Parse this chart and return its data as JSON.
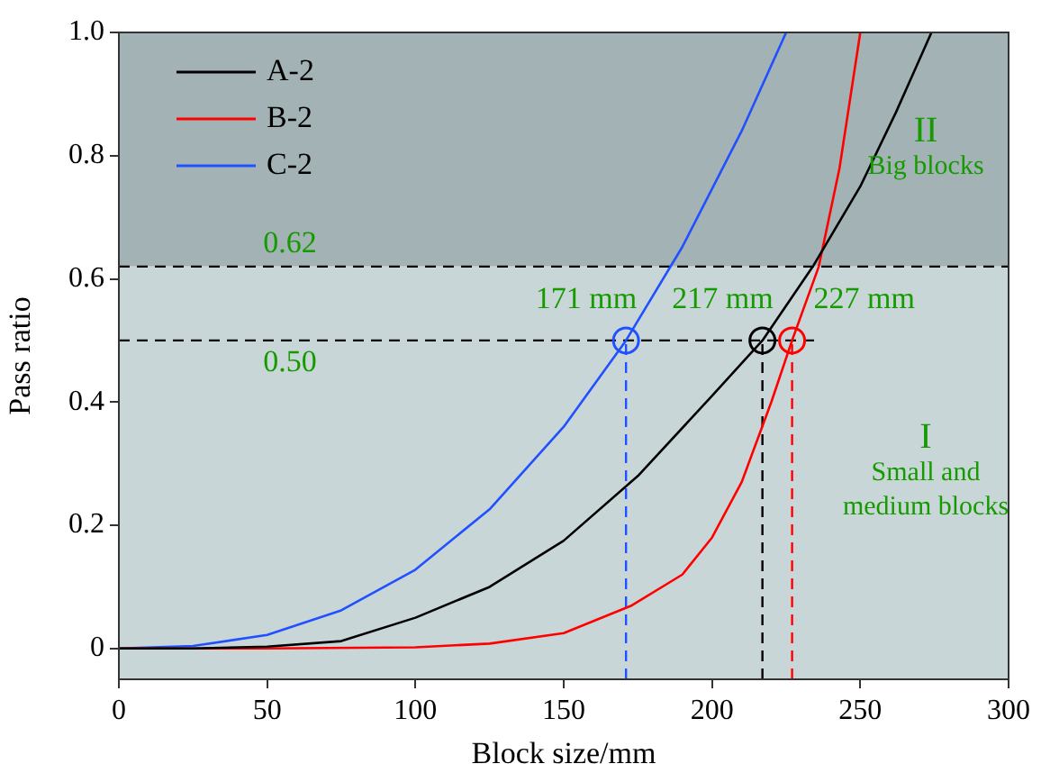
{
  "chart_data": {
    "type": "line",
    "xlabel": "Block size/mm",
    "ylabel": "Pass ratio",
    "xlim": [
      0,
      300
    ],
    "xticks": [
      0,
      50,
      100,
      150,
      200,
      250,
      300
    ],
    "ylim": [
      -0.05,
      1.0
    ],
    "yticks": [
      0,
      0.2,
      0.4,
      0.6,
      0.8,
      {
        "value": 1,
        "label": "1.0"
      }
    ],
    "grid": false,
    "legend": "top left",
    "marker": "none",
    "line_style": "solid",
    "series": [
      {
        "name": "A-2",
        "color": "#000000",
        "x": [
          0,
          25,
          50,
          75,
          100,
          125,
          150,
          175,
          200,
          217,
          234,
          250,
          262,
          274
        ],
        "values": [
          0,
          0,
          0.003,
          0.012,
          0.05,
          0.1,
          0.175,
          0.28,
          0.41,
          0.5,
          0.62,
          0.75,
          0.87,
          1.0
        ]
      },
      {
        "name": "B-2",
        "color": "#ff0000",
        "x": [
          0,
          50,
          100,
          125,
          150,
          173,
          190,
          200,
          210,
          220,
          227,
          236,
          243,
          250
        ],
        "values": [
          0,
          0,
          0.002,
          0.008,
          0.025,
          0.07,
          0.12,
          0.18,
          0.27,
          0.4,
          0.5,
          0.62,
          0.78,
          1.0
        ]
      },
      {
        "name": "C-2",
        "color": "#2050ff",
        "x": [
          0,
          25,
          50,
          75,
          100,
          125,
          150,
          171,
          190,
          210,
          225
        ],
        "values": [
          0,
          0.004,
          0.022,
          0.062,
          0.128,
          0.226,
          0.36,
          0.5,
          0.652,
          0.84,
          1.0
        ]
      }
    ],
    "bands": [
      {
        "axis": "y",
        "from": 0.62,
        "to": 1.0,
        "label": "II\nBig blocks",
        "color": "#a2b2b5"
      },
      {
        "axis": "y",
        "from": -0.05,
        "to": 0.62,
        "label": "I\nSmall and\nmedium blocks",
        "color": "#c9d6d8"
      }
    ],
    "ref_lines": [
      {
        "axis": "y",
        "value": 0.62,
        "label": "0.62",
        "color": "#000000",
        "line_style": "dashed"
      },
      {
        "axis": "y",
        "value": 0.5,
        "label": "0.50",
        "color": "#000000",
        "line_style": "dashed"
      },
      {
        "axis": "x",
        "value": 171,
        "color": "#2050ff",
        "line_style": "dashed"
      },
      {
        "axis": "x",
        "value": 217,
        "color": "#000000",
        "line_style": "dashed"
      },
      {
        "axis": "x",
        "value": 227,
        "color": "#ff0000",
        "line_style": "dashed"
      }
    ],
    "annotations": [
      {
        "text": "171 mm",
        "x": 171,
        "y": 0.5
      },
      {
        "text": "217 mm",
        "x": 217,
        "y": 0.5
      },
      {
        "text": "227 mm",
        "x": 227,
        "y": 0.5
      }
    ]
  }
}
